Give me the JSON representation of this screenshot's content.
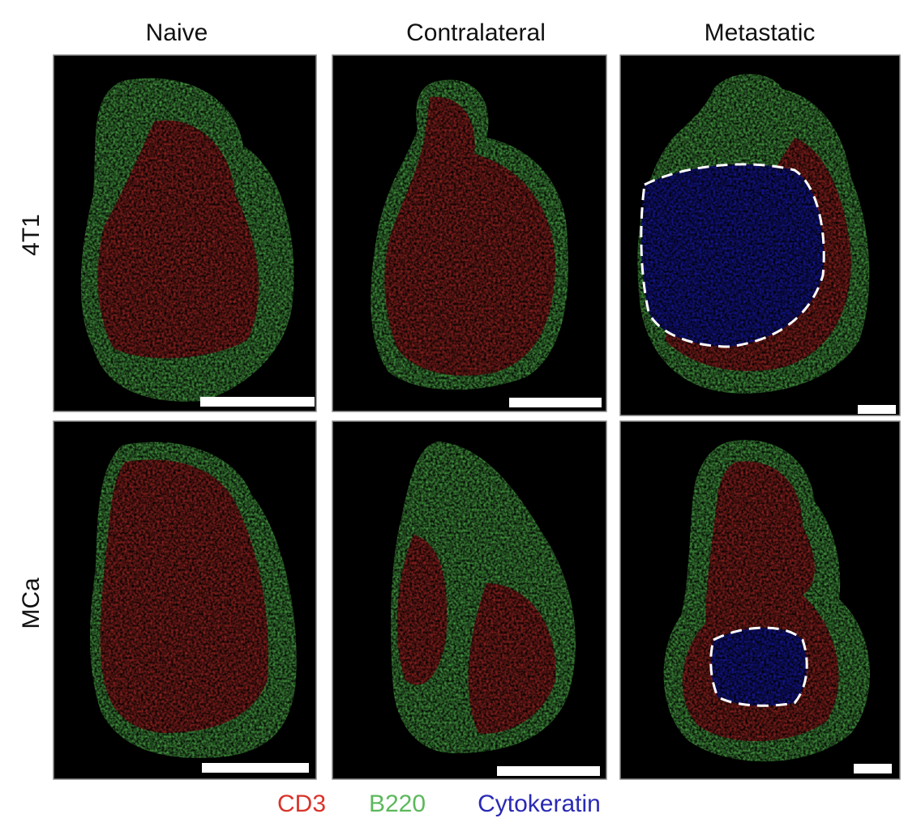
{
  "columns": [
    "Naive",
    "Contralateral",
    "Metastatic"
  ],
  "rows": [
    "4T1",
    "MCa"
  ],
  "legend": [
    {
      "text": "CD3",
      "color": "#d9342b"
    },
    {
      "text": "B220",
      "color": "#5cb85c"
    },
    {
      "text": "Cytokeratin",
      "color": "#2a2ab4"
    }
  ]
}
